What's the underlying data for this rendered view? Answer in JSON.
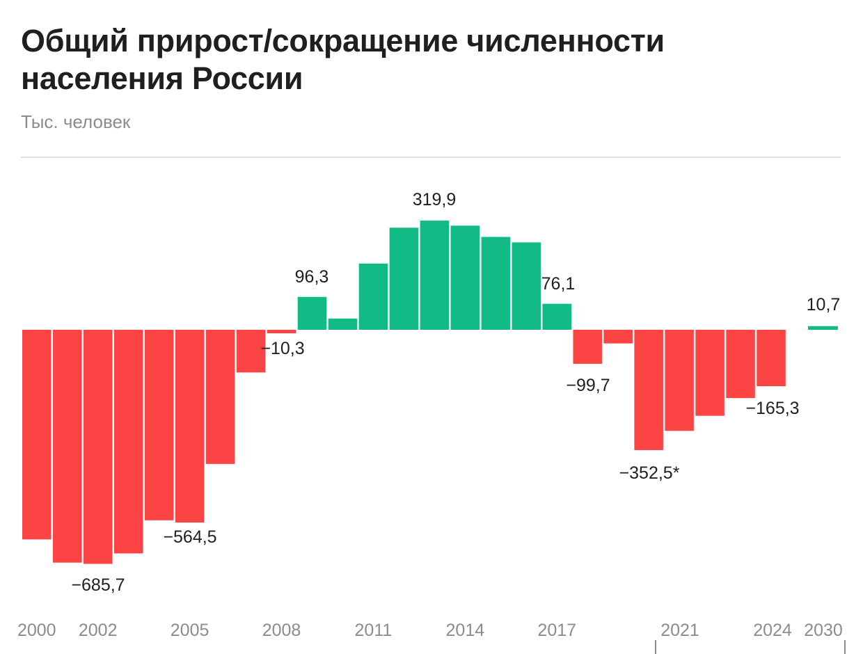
{
  "title": "Общий прирост/сокращение численности населения России",
  "subtitle": "Тыс. человек",
  "colors": {
    "positive": "#12bb85",
    "negative": "#fd4444",
    "text": "#1f1f1f",
    "tick": "#8c8c8c"
  },
  "chart_data": {
    "type": "bar",
    "title": "Общий прирост/сокращение численности населения России",
    "ylabel": "Тыс. человек",
    "categories": [
      "2000",
      "2001",
      "2002",
      "2003",
      "2004",
      "2005",
      "2006",
      "2007",
      "2008",
      "2009",
      "2010",
      "2011",
      "2012",
      "2013",
      "2014",
      "2015",
      "2016",
      "2017",
      "2018",
      "2019",
      "2020",
      "2021",
      "2022",
      "2023",
      "2024",
      "2030"
    ],
    "values": [
      -614,
      -682,
      -685.7,
      -655,
      -558,
      -564.5,
      -393,
      -125,
      -10.3,
      96.3,
      33,
      194,
      299,
      319.9,
      305,
      272,
      256,
      76.1,
      -99.7,
      -40,
      -352.5,
      -296,
      -252,
      -200,
      -165.3,
      10.7
    ],
    "data_labels": [
      {
        "category": "2002",
        "text": "−685,7"
      },
      {
        "category": "2005",
        "text": "−564,5"
      },
      {
        "category": "2008",
        "text": "−10,3"
      },
      {
        "category": "2009",
        "text": "96,3"
      },
      {
        "category": "2013",
        "text": "319,9"
      },
      {
        "category": "2017",
        "text": "76,1"
      },
      {
        "category": "2018",
        "text": "−99,7"
      },
      {
        "category": "2020",
        "text": "−352,5*"
      },
      {
        "category": "2024",
        "text": "−165,3"
      },
      {
        "category": "2030",
        "text": "10,7"
      }
    ],
    "tick_labels": [
      "2000",
      "2002",
      "2005",
      "2008",
      "2011",
      "2014",
      "2017",
      "2021",
      "2024",
      "2030"
    ],
    "ylim": [
      -700,
      330
    ],
    "grid": false,
    "legend": "none"
  }
}
